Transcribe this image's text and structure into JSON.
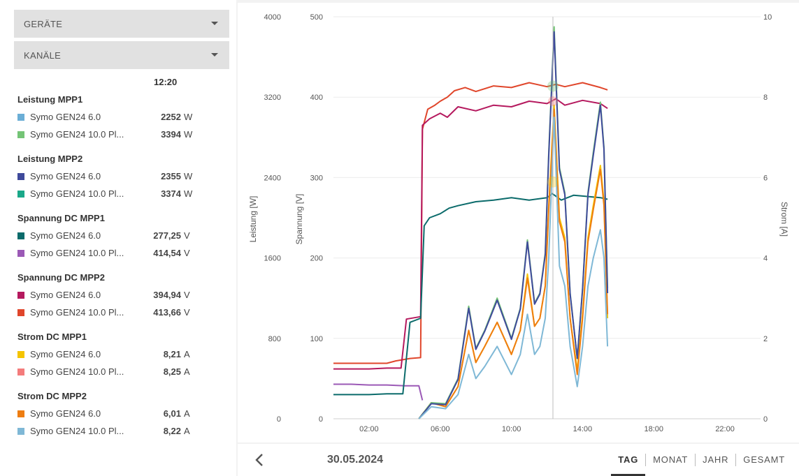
{
  "sidebar": {
    "devices_label": "GERÄTE",
    "channels_label": "KANÄLE",
    "time": "12:20",
    "groups": [
      {
        "title": "Leistung MPP1",
        "items": [
          {
            "name": "Symo GEN24 6.0",
            "value": "2252",
            "unit": "W",
            "color": "#6baed6"
          },
          {
            "name": "Symo GEN24 10.0 Pl...",
            "value": "3394",
            "unit": "W",
            "color": "#74c476"
          }
        ]
      },
      {
        "title": "Leistung MPP2",
        "items": [
          {
            "name": "Symo GEN24 6.0",
            "value": "2355",
            "unit": "W",
            "color": "#3f4a9b"
          },
          {
            "name": "Symo GEN24 10.0 Pl...",
            "value": "3374",
            "unit": "W",
            "color": "#1aa889"
          }
        ]
      },
      {
        "title": "Spannung DC MPP1",
        "items": [
          {
            "name": "Symo GEN24 6.0",
            "value": "277,25",
            "unit": "V",
            "color": "#0b6b6b"
          },
          {
            "name": "Symo GEN24 10.0 Pl...",
            "value": "414,54",
            "unit": "V",
            "color": "#9b59b6"
          }
        ]
      },
      {
        "title": "Spannung DC MPP2",
        "items": [
          {
            "name": "Symo GEN24 6.0",
            "value": "394,94",
            "unit": "V",
            "color": "#b5195e"
          },
          {
            "name": "Symo GEN24 10.0 Pl...",
            "value": "413,66",
            "unit": "V",
            "color": "#e0462b"
          }
        ]
      },
      {
        "title": "Strom DC MPP1",
        "items": [
          {
            "name": "Symo GEN24 6.0",
            "value": "8,21",
            "unit": "A",
            "color": "#f5c400"
          },
          {
            "name": "Symo GEN24 10.0 Pl...",
            "value": "8,25",
            "unit": "A",
            "color": "#f47c7c"
          }
        ]
      },
      {
        "title": "Strom DC MPP2",
        "items": [
          {
            "name": "Symo GEN24 6.0",
            "value": "6,01",
            "unit": "A",
            "color": "#ee7d11"
          },
          {
            "name": "Symo GEN24 10.0 Pl...",
            "value": "8,22",
            "unit": "A",
            "color": "#7fb8d6"
          }
        ]
      }
    ]
  },
  "chart_data": {
    "type": "line",
    "axes": {
      "leistung": {
        "label": "Leistung [W]",
        "ticks": [
          "0",
          "800",
          "1600",
          "2400",
          "3200",
          "4000"
        ],
        "range": [
          0,
          4000
        ]
      },
      "spannung": {
        "label": "Spannung [V]",
        "ticks": [
          "0",
          "100",
          "200",
          "300",
          "400",
          "500"
        ],
        "range": [
          0,
          500
        ]
      },
      "strom": {
        "label": "Strom [A]",
        "ticks": [
          "0",
          "2",
          "4",
          "6",
          "8",
          "10"
        ],
        "range": [
          0,
          10
        ]
      }
    },
    "x_ticks": [
      "02:00",
      "06:00",
      "10:00",
      "14:00",
      "18:00",
      "22:00"
    ],
    "x_range_hours": [
      0,
      24
    ],
    "cursor_time": "12:20",
    "series": [
      {
        "name": "Spannung DC MPP2 · Symo GEN24 10.0 Pl...",
        "axis": "spannung",
        "color": "#e0462b",
        "points": [
          [
            0,
            69
          ],
          [
            2,
            69
          ],
          [
            3,
            69
          ],
          [
            3.5,
            72
          ],
          [
            4.3,
            75
          ],
          [
            4.9,
            76
          ],
          [
            5,
            360
          ],
          [
            5.3,
            385
          ],
          [
            5.7,
            390
          ],
          [
            6,
            395
          ],
          [
            6.4,
            400
          ],
          [
            6.8,
            408
          ],
          [
            7.4,
            412
          ],
          [
            8,
            407
          ],
          [
            9,
            414
          ],
          [
            10,
            412
          ],
          [
            11,
            418
          ],
          [
            12,
            413
          ],
          [
            12.5,
            416
          ],
          [
            13,
            413
          ],
          [
            14,
            418
          ],
          [
            15,
            412
          ],
          [
            15.4,
            409
          ]
        ]
      },
      {
        "name": "Spannung DC MPP2 · Symo GEN24 6.0",
        "axis": "spannung",
        "color": "#b5195e",
        "points": [
          [
            0,
            62
          ],
          [
            2,
            62
          ],
          [
            3,
            63
          ],
          [
            3.8,
            63
          ],
          [
            4.1,
            124
          ],
          [
            4.9,
            127
          ],
          [
            5,
            365
          ],
          [
            5.4,
            373
          ],
          [
            6,
            380
          ],
          [
            6.4,
            375
          ],
          [
            7,
            388
          ],
          [
            8,
            383
          ],
          [
            9,
            390
          ],
          [
            10,
            388
          ],
          [
            11,
            395
          ],
          [
            12,
            392
          ],
          [
            12.5,
            398
          ],
          [
            13,
            390
          ],
          [
            14,
            396
          ],
          [
            15,
            392
          ],
          [
            15.4,
            386
          ]
        ]
      },
      {
        "name": "Spannung DC MPP1 · Symo GEN24 10.0 Pl...",
        "axis": "spannung",
        "color": "#9b59b6",
        "points": [
          [
            0,
            43
          ],
          [
            1,
            43
          ],
          [
            2,
            42
          ],
          [
            3,
            42
          ],
          [
            4,
            41
          ],
          [
            4.8,
            41
          ],
          [
            5,
            23
          ]
        ]
      },
      {
        "name": "Spannung DC MPP1 · Symo GEN24 6.0",
        "axis": "spannung",
        "color": "#0b6b6b",
        "points": [
          [
            0,
            30
          ],
          [
            2,
            30
          ],
          [
            3,
            31
          ],
          [
            3.9,
            31
          ],
          [
            4.3,
            120
          ],
          [
            4.9,
            125
          ],
          [
            5.1,
            240
          ],
          [
            5.4,
            250
          ],
          [
            6,
            255
          ],
          [
            6.5,
            262
          ],
          [
            7,
            265
          ],
          [
            8,
            270
          ],
          [
            9,
            272
          ],
          [
            10,
            275
          ],
          [
            11,
            272
          ],
          [
            12,
            275
          ],
          [
            12.3,
            280
          ],
          [
            12.8,
            272
          ],
          [
            13.5,
            278
          ],
          [
            14,
            277
          ],
          [
            15,
            275
          ],
          [
            15.4,
            273
          ]
        ]
      },
      {
        "name": "Strom DC MPP1 · Symo GEN24 6.0",
        "axis": "strom",
        "color": "#f5c400",
        "points": [
          [
            4.8,
            0
          ],
          [
            5.5,
            0.4
          ],
          [
            6.3,
            0.3
          ],
          [
            7,
            0.8
          ],
          [
            7.6,
            2.2
          ],
          [
            8,
            1.4
          ],
          [
            8.5,
            1.8
          ],
          [
            9.2,
            2.4
          ],
          [
            10,
            1.6
          ],
          [
            10.5,
            2.2
          ],
          [
            10.9,
            3.6
          ],
          [
            11.3,
            2.3
          ],
          [
            11.6,
            2.5
          ],
          [
            11.9,
            3.3
          ],
          [
            12.1,
            5.3
          ],
          [
            12.4,
            7.8
          ],
          [
            12.7,
            5.0
          ],
          [
            13,
            4.5
          ],
          [
            13.3,
            2.5
          ],
          [
            13.7,
            1.2
          ],
          [
            14,
            2.6
          ],
          [
            14.3,
            4.5
          ],
          [
            14.6,
            5.3
          ],
          [
            15,
            6.3
          ],
          [
            15.2,
            5.4
          ],
          [
            15.4,
            2.5
          ]
        ]
      },
      {
        "name": "Strom DC MPP2 · Symo GEN24 6.0",
        "axis": "strom",
        "color": "#ee7d11",
        "points": [
          [
            4.8,
            0
          ],
          [
            5.5,
            0.4
          ],
          [
            6.3,
            0.3
          ],
          [
            7,
            0.8
          ],
          [
            7.6,
            2.2
          ],
          [
            8,
            1.4
          ],
          [
            8.5,
            1.8
          ],
          [
            9.2,
            2.4
          ],
          [
            10,
            1.6
          ],
          [
            10.5,
            2.2
          ],
          [
            10.9,
            3.5
          ],
          [
            11.3,
            2.3
          ],
          [
            11.6,
            2.5
          ],
          [
            11.9,
            3.3
          ],
          [
            12.1,
            5.2
          ],
          [
            12.4,
            7.7
          ],
          [
            12.7,
            4.9
          ],
          [
            13,
            4.4
          ],
          [
            13.3,
            2.5
          ],
          [
            13.7,
            1.1
          ],
          [
            14,
            2.5
          ],
          [
            14.3,
            4.4
          ],
          [
            14.6,
            5.2
          ],
          [
            15,
            6.2
          ],
          [
            15.2,
            5.3
          ],
          [
            15.4,
            2.6
          ]
        ]
      },
      {
        "name": "Leistung MPP1 · Symo GEN24 10.0 Pl...",
        "axis": "leistung",
        "color": "#74c476",
        "points": [
          [
            4.8,
            0
          ],
          [
            5.5,
            160
          ],
          [
            6.3,
            150
          ],
          [
            7,
            400
          ],
          [
            7.6,
            1120
          ],
          [
            8,
            700
          ],
          [
            8.5,
            880
          ],
          [
            9.2,
            1200
          ],
          [
            10,
            800
          ],
          [
            10.5,
            1100
          ],
          [
            10.9,
            1780
          ],
          [
            11.3,
            1150
          ],
          [
            11.6,
            1250
          ],
          [
            11.9,
            1650
          ],
          [
            12.1,
            2650
          ],
          [
            12.4,
            3900
          ],
          [
            12.7,
            2500
          ],
          [
            13,
            2250
          ],
          [
            13.3,
            1250
          ],
          [
            13.7,
            600
          ],
          [
            14,
            1300
          ],
          [
            14.3,
            2250
          ],
          [
            14.6,
            2650
          ],
          [
            15,
            3150
          ],
          [
            15.2,
            2700
          ],
          [
            15.4,
            1300
          ]
        ]
      },
      {
        "name": "Leistung MPP2 · Symo GEN24 6.0",
        "axis": "leistung",
        "color": "#3f4a9b",
        "points": [
          [
            4.8,
            0
          ],
          [
            5.5,
            150
          ],
          [
            6.3,
            140
          ],
          [
            7,
            390
          ],
          [
            7.6,
            1100
          ],
          [
            8,
            690
          ],
          [
            8.5,
            870
          ],
          [
            9.2,
            1180
          ],
          [
            10,
            790
          ],
          [
            10.5,
            1090
          ],
          [
            10.9,
            1760
          ],
          [
            11.3,
            1140
          ],
          [
            11.6,
            1240
          ],
          [
            11.9,
            1630
          ],
          [
            12.1,
            2620
          ],
          [
            12.4,
            3850
          ],
          [
            12.7,
            2480
          ],
          [
            13,
            2230
          ],
          [
            13.3,
            1240
          ],
          [
            13.7,
            600
          ],
          [
            14,
            1290
          ],
          [
            14.3,
            2230
          ],
          [
            14.6,
            2620
          ],
          [
            15,
            3120
          ],
          [
            15.2,
            2680
          ],
          [
            15.4,
            1250
          ]
        ]
      },
      {
        "name": "Strom DC MPP2 · Symo GEN24 10.0 Pl...",
        "axis": "strom",
        "color": "#7fb8d6",
        "points": [
          [
            4.8,
            0
          ],
          [
            5.5,
            0.3
          ],
          [
            6.3,
            0.25
          ],
          [
            7,
            0.6
          ],
          [
            7.6,
            1.6
          ],
          [
            8,
            1.0
          ],
          [
            8.5,
            1.3
          ],
          [
            9.2,
            1.8
          ],
          [
            10,
            1.1
          ],
          [
            10.5,
            1.6
          ],
          [
            10.9,
            2.6
          ],
          [
            11.3,
            1.6
          ],
          [
            11.6,
            1.8
          ],
          [
            11.9,
            2.5
          ],
          [
            12.1,
            4.0
          ],
          [
            12.4,
            7.5
          ],
          [
            12.7,
            3.8
          ],
          [
            13,
            3.3
          ],
          [
            13.3,
            1.8
          ],
          [
            13.7,
            0.8
          ],
          [
            14,
            1.8
          ],
          [
            14.3,
            3.3
          ],
          [
            14.6,
            4.0
          ],
          [
            15,
            4.7
          ],
          [
            15.2,
            4.0
          ],
          [
            15.4,
            1.8
          ]
        ]
      }
    ]
  },
  "footer": {
    "date": "30.05.2024",
    "tabs": [
      "TAG",
      "MONAT",
      "JAHR",
      "GESAMT"
    ],
    "active_tab": "TAG"
  }
}
